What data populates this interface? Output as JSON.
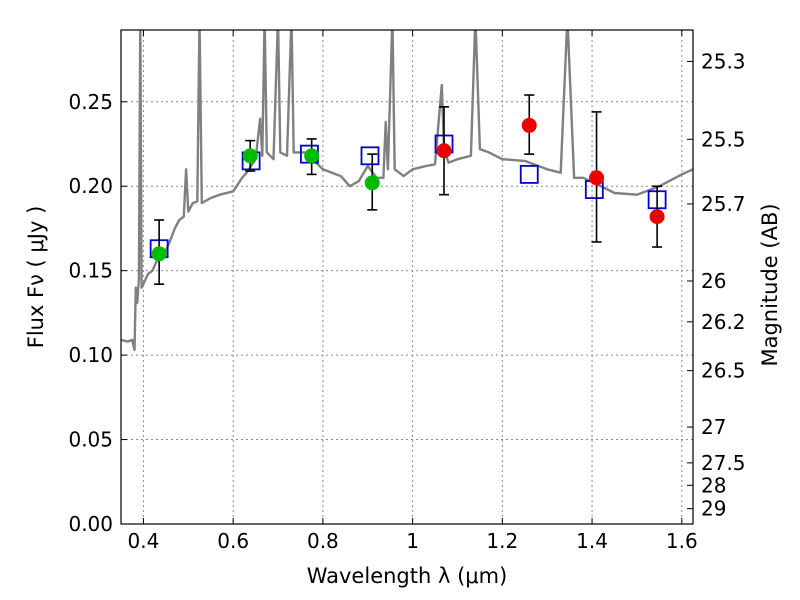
{
  "chart_data": {
    "type": "scatter",
    "title": "",
    "xlabel": "Wavelength  λ (μm)",
    "ylabel": "Flux  Fν  ( μJy )",
    "y2label": "Magnitude (AB)",
    "xlim": [
      0.35,
      1.625
    ],
    "ylim": [
      0.0,
      0.2925
    ],
    "grid": true,
    "legend": "none",
    "x_ticks": [
      0.4,
      0.6,
      0.8,
      1.0,
      1.2,
      1.4,
      1.6
    ],
    "x_tick_labels": [
      "0.4",
      "0.6",
      "0.8",
      "1",
      "1.2",
      "1.4",
      "1.6"
    ],
    "y_ticks": [
      0.0,
      0.05,
      0.1,
      0.15,
      0.2,
      0.25
    ],
    "y_tick_labels": [
      "0.00",
      "0.05",
      "0.10",
      "0.15",
      "0.20",
      "0.25"
    ],
    "y2_ticks": [
      {
        "label": "25.3",
        "flux": 0.2739
      },
      {
        "label": "25.5",
        "flux": 0.2278
      },
      {
        "label": "25.7",
        "flux": 0.1895
      },
      {
        "label": "26",
        "flux": 0.1439
      },
      {
        "label": "26.2",
        "flux": 0.1197
      },
      {
        "label": "26.5",
        "flux": 0.0908
      },
      {
        "label": "27",
        "flux": 0.0574
      },
      {
        "label": "27.5",
        "flux": 0.0362
      },
      {
        "label": "28",
        "flux": 0.0229
      },
      {
        "label": "29",
        "flux": 0.0091
      }
    ],
    "colors": {
      "model": "#808080",
      "model_photometry": "#0000cc",
      "green_points": "#00bb00",
      "red_points": "#ee0000",
      "error_bars": "#000000"
    },
    "series": [
      {
        "kind": "line",
        "points": [
          [
            0.35,
            0.109
          ],
          [
            0.365,
            0.108
          ],
          [
            0.375,
            0.109
          ],
          [
            0.38,
            0.103
          ],
          [
            0.383,
            0.14
          ],
          [
            0.386,
            0.131
          ],
          [
            0.39,
            0.145
          ],
          [
            0.393,
            0.3
          ],
          [
            0.396,
            0.14
          ],
          [
            0.4,
            0.142
          ],
          [
            0.41,
            0.148
          ],
          [
            0.42,
            0.15
          ],
          [
            0.43,
            0.156
          ],
          [
            0.44,
            0.158
          ],
          [
            0.45,
            0.162
          ],
          [
            0.46,
            0.168
          ],
          [
            0.47,
            0.175
          ],
          [
            0.48,
            0.18
          ],
          [
            0.49,
            0.182
          ],
          [
            0.495,
            0.21
          ],
          [
            0.5,
            0.185
          ],
          [
            0.51,
            0.19
          ],
          [
            0.52,
            0.191
          ],
          [
            0.525,
            0.3
          ],
          [
            0.53,
            0.19
          ],
          [
            0.55,
            0.193
          ],
          [
            0.57,
            0.195
          ],
          [
            0.6,
            0.197
          ],
          [
            0.62,
            0.205
          ],
          [
            0.63,
            0.208
          ],
          [
            0.64,
            0.212
          ],
          [
            0.65,
            0.216
          ],
          [
            0.66,
            0.24
          ],
          [
            0.665,
            0.218
          ],
          [
            0.67,
            0.3
          ],
          [
            0.675,
            0.22
          ],
          [
            0.69,
            0.216
          ],
          [
            0.7,
            0.3
          ],
          [
            0.705,
            0.22
          ],
          [
            0.72,
            0.218
          ],
          [
            0.73,
            0.3
          ],
          [
            0.735,
            0.22
          ],
          [
            0.76,
            0.22
          ],
          [
            0.8,
            0.21
          ],
          [
            0.84,
            0.206
          ],
          [
            0.86,
            0.2
          ],
          [
            0.88,
            0.203
          ],
          [
            0.9,
            0.212
          ],
          [
            0.92,
            0.205
          ],
          [
            0.935,
            0.205
          ],
          [
            0.94,
            0.238
          ],
          [
            0.945,
            0.21
          ],
          [
            0.955,
            0.3
          ],
          [
            0.96,
            0.21
          ],
          [
            0.98,
            0.206
          ],
          [
            1.0,
            0.21
          ],
          [
            1.03,
            0.212
          ],
          [
            1.05,
            0.213
          ],
          [
            1.065,
            0.26
          ],
          [
            1.07,
            0.222
          ],
          [
            1.08,
            0.214
          ],
          [
            1.1,
            0.216
          ],
          [
            1.13,
            0.218
          ],
          [
            1.14,
            0.3
          ],
          [
            1.15,
            0.222
          ],
          [
            1.17,
            0.22
          ],
          [
            1.2,
            0.216
          ],
          [
            1.25,
            0.215
          ],
          [
            1.3,
            0.21
          ],
          [
            1.33,
            0.208
          ],
          [
            1.345,
            0.3
          ],
          [
            1.36,
            0.205
          ],
          [
            1.38,
            0.205
          ],
          [
            1.42,
            0.2
          ],
          [
            1.45,
            0.196
          ],
          [
            1.5,
            0.195
          ],
          [
            1.55,
            0.2
          ],
          [
            1.6,
            0.207
          ],
          [
            1.625,
            0.21
          ]
        ]
      },
      {
        "kind": "squares",
        "points": [
          [
            0.435,
            0.163
          ],
          [
            0.64,
            0.215
          ],
          [
            0.77,
            0.219
          ],
          [
            0.905,
            0.218
          ],
          [
            1.07,
            0.225
          ],
          [
            1.26,
            0.207
          ],
          [
            1.405,
            0.198
          ],
          [
            1.545,
            0.192
          ]
        ]
      },
      {
        "kind": "points",
        "points": [
          {
            "x": 0.435,
            "y": 0.16,
            "err": [
              0.142,
              0.18
            ]
          },
          {
            "x": 0.638,
            "y": 0.218,
            "err": [
              0.209,
              0.227
            ]
          },
          {
            "x": 0.775,
            "y": 0.218,
            "err": [
              0.207,
              0.228
            ]
          },
          {
            "x": 0.91,
            "y": 0.202,
            "err": [
              0.186,
              0.219
            ]
          }
        ]
      },
      {
        "kind": "points",
        "points": [
          {
            "x": 1.07,
            "y": 0.221,
            "err": [
              0.195,
              0.247
            ]
          },
          {
            "x": 1.26,
            "y": 0.236,
            "err": [
              0.219,
              0.254
            ]
          },
          {
            "x": 1.41,
            "y": 0.205,
            "err": [
              0.167,
              0.244
            ]
          },
          {
            "x": 1.545,
            "y": 0.182,
            "err": [
              0.164,
              0.2
            ]
          }
        ]
      }
    ]
  }
}
